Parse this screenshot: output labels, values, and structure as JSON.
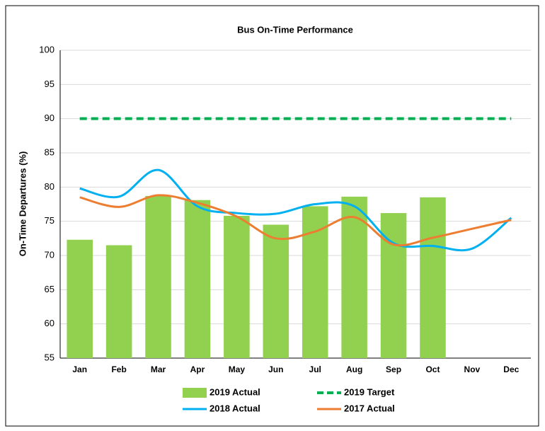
{
  "chart_data": {
    "type": "bar",
    "title": "Bus On-Time Performance",
    "y_label": "On-Time Departures (%)",
    "categories": [
      "Jan",
      "Feb",
      "Mar",
      "Apr",
      "May",
      "Jun",
      "Jul",
      "Aug",
      "Sep",
      "Oct",
      "Nov",
      "Dec"
    ],
    "series": [
      {
        "name": "2019 Actual",
        "type": "bar",
        "color": "#92d050",
        "values": [
          72.3,
          71.5,
          78.7,
          78.1,
          75.8,
          74.5,
          77.2,
          78.6,
          76.2,
          78.5,
          null,
          null
        ]
      },
      {
        "name": "2019 Target",
        "type": "line",
        "dashed": true,
        "color": "#00b050",
        "values": [
          90,
          90,
          90,
          90,
          90,
          90,
          90,
          90,
          90,
          90,
          90,
          90
        ]
      },
      {
        "name": "2018 Actual",
        "type": "line",
        "smooth": true,
        "color": "#00b0f0",
        "values": [
          79.8,
          78.6,
          82.5,
          77.2,
          76.2,
          76.1,
          77.5,
          77.2,
          71.8,
          71.4,
          71.0,
          75.5
        ]
      },
      {
        "name": "2017 Actual",
        "type": "line",
        "smooth": true,
        "color": "#ed7d31",
        "values": [
          78.5,
          77.1,
          78.8,
          77.7,
          75.7,
          72.5,
          73.5,
          75.6,
          71.6,
          72.6,
          73.9,
          75.2
        ]
      }
    ],
    "ylim": [
      55,
      100
    ],
    "yticks": [
      55,
      60,
      65,
      70,
      75,
      80,
      85,
      90,
      95,
      100
    ],
    "grid": true,
    "legend": "bottom"
  }
}
